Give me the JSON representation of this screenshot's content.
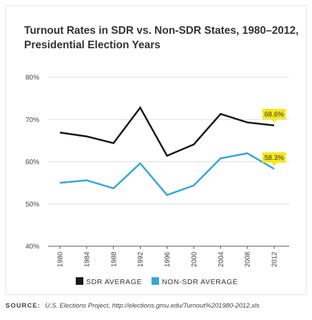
{
  "chart_data": {
    "type": "line",
    "title_line1": "Turnout Rates in SDR vs. Non-SDR States, 1980–2012,",
    "title_line2": "Presidential Election Years",
    "x": [
      "1980",
      "1984",
      "1988",
      "1992",
      "1996",
      "2000",
      "2004",
      "2008",
      "2012"
    ],
    "ylim": [
      40,
      80
    ],
    "yticks": [
      "40%",
      "50%",
      "60%",
      "70%",
      "80%"
    ],
    "ytick_values": [
      40,
      50,
      60,
      70,
      80
    ],
    "grid": true,
    "legend_position": "bottom",
    "series": [
      {
        "name": "SDR AVERAGE",
        "color": "#1a1a1a",
        "values": [
          66.9,
          66.0,
          64.4,
          72.8,
          61.4,
          64.1,
          71.3,
          69.3,
          68.6
        ],
        "end_label": "68.6%"
      },
      {
        "name": "NON-SDR AVERAGE",
        "color": "#3aa6d6",
        "values": [
          55.0,
          55.6,
          53.7,
          59.6,
          52.1,
          54.4,
          60.8,
          62.0,
          58.3
        ],
        "end_label": "58.3%"
      }
    ],
    "callout_color": "#f5e71c"
  },
  "source": {
    "label": "SOURCE:",
    "text": "U.S. Elections Project, http://elections.gmu.edu/Turnout%201980-2012.xls"
  }
}
